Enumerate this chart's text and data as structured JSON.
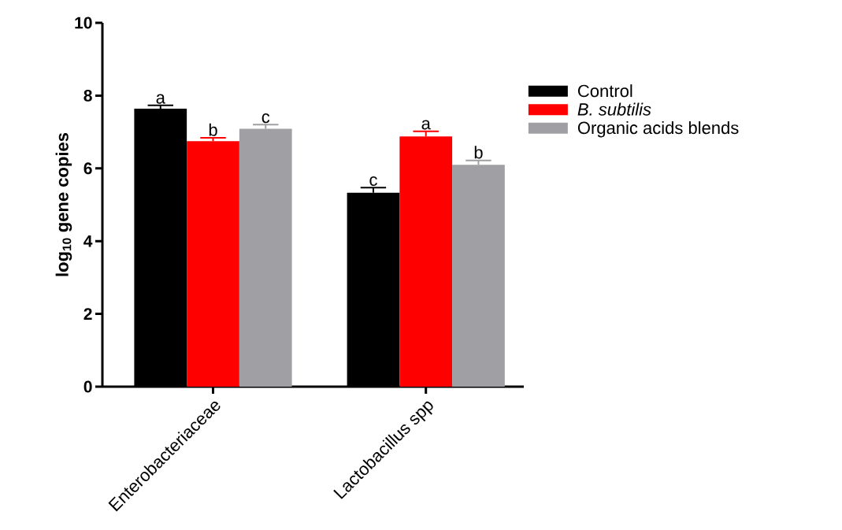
{
  "chart_data": {
    "type": "bar",
    "ylabel": "log$_{10}$ gene copies",
    "categories": [
      "Enterobacteriaceae",
      "Lactobacillus spp"
    ],
    "series": [
      {
        "name": "Control",
        "color": "#000000",
        "values": [
          7.64,
          5.33
        ],
        "errors": [
          0.09,
          0.14
        ]
      },
      {
        "name": "B. subtilis",
        "color": "#ff0000",
        "values": [
          6.75,
          6.88
        ],
        "errors": [
          0.09,
          0.14
        ]
      },
      {
        "name": "Organic acids blends",
        "color": "#a0a0a4",
        "values": [
          7.09,
          6.1
        ],
        "errors": [
          0.11,
          0.12
        ]
      }
    ],
    "ylim": [
      0,
      10
    ],
    "yticks": [
      0,
      2,
      4,
      6,
      8,
      10
    ],
    "legend": "right",
    "annotations": [
      "a",
      "b",
      "c",
      "c",
      "a",
      "b"
    ]
  }
}
